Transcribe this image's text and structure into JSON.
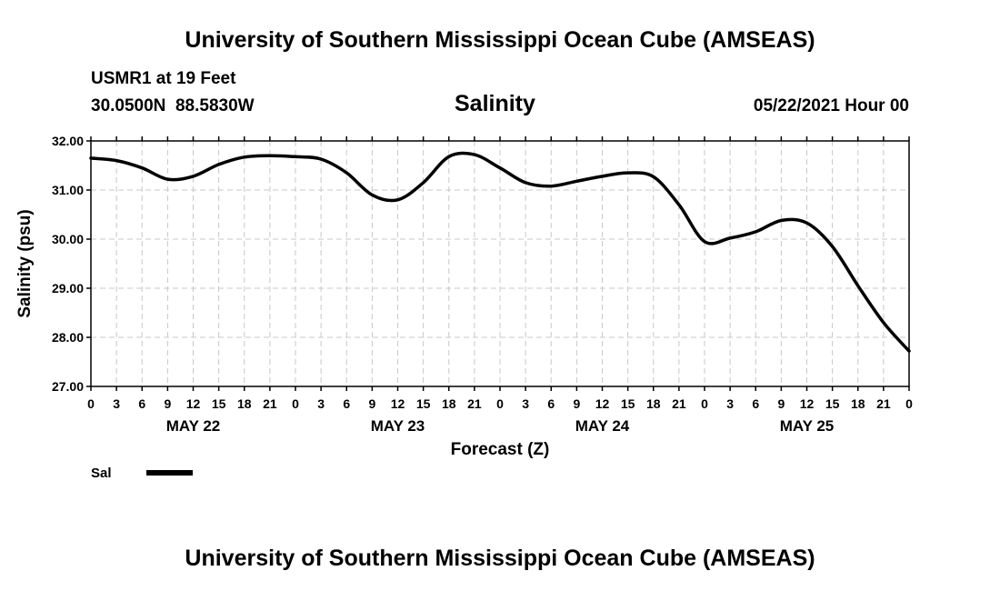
{
  "header": {
    "title": "University of Southern Mississippi Ocean Cube (AMSEAS)",
    "station": "USMR1 at 19 Feet",
    "coordinates": "30.0500N  88.5830W",
    "chart_title": "Salinity",
    "datetime": "05/22/2021 Hour 00"
  },
  "footer": {
    "title": "University of Southern Mississippi Ocean Cube (AMSEAS)"
  },
  "chart_data": {
    "type": "line",
    "title": "Salinity",
    "xlabel": "Forecast (Z)",
    "ylabel": "Salinity (psu)",
    "ylim": [
      27.0,
      32.0
    ],
    "y_ticks": [
      "27.00",
      "28.00",
      "29.00",
      "30.00",
      "31.00",
      "32.00"
    ],
    "x_range_hours": [
      0,
      96
    ],
    "x_tick_labels": [
      "0",
      "3",
      "6",
      "9",
      "12",
      "15",
      "18",
      "21",
      "0",
      "3",
      "6",
      "9",
      "12",
      "15",
      "18",
      "21",
      "0",
      "3",
      "6",
      "9",
      "12",
      "15",
      "18",
      "21",
      "0",
      "3",
      "6",
      "9",
      "12",
      "15",
      "18",
      "21",
      "0"
    ],
    "day_labels": [
      {
        "label": "MAY 22",
        "hour": 12
      },
      {
        "label": "MAY 23",
        "hour": 36
      },
      {
        "label": "MAY 24",
        "hour": 60
      },
      {
        "label": "MAY 25",
        "hour": 84
      }
    ],
    "grid": true,
    "legend_position": "bottom-left",
    "series": [
      {
        "name": "Sal",
        "color": "#000000",
        "x": [
          0,
          3,
          6,
          9,
          12,
          15,
          18,
          21,
          24,
          27,
          30,
          33,
          36,
          39,
          42,
          45,
          48,
          51,
          54,
          57,
          60,
          63,
          66,
          69,
          72,
          75,
          78,
          81,
          84,
          87,
          90,
          93,
          96
        ],
        "values": [
          31.65,
          31.6,
          31.45,
          31.22,
          31.28,
          31.52,
          31.67,
          31.7,
          31.68,
          31.63,
          31.35,
          30.9,
          30.8,
          31.15,
          31.68,
          31.72,
          31.45,
          31.15,
          31.08,
          31.18,
          31.28,
          31.35,
          31.27,
          30.7,
          29.95,
          30.02,
          30.15,
          30.38,
          30.33,
          29.85,
          29.05,
          28.3,
          27.72
        ]
      }
    ]
  }
}
